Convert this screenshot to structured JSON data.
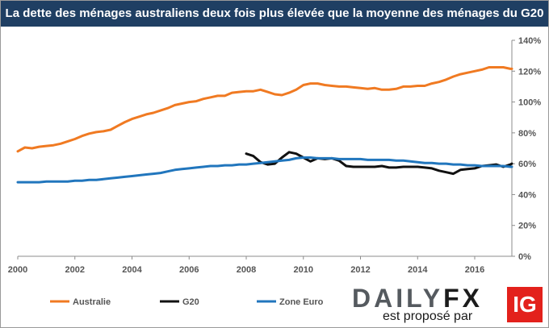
{
  "chart_data": {
    "type": "line",
    "title": "La dette des ménages australiens deux fois plus élevée que la moyenne des ménages du G20",
    "x_ticks": [
      "2000",
      "2002",
      "2004",
      "2006",
      "2008",
      "2010",
      "2012",
      "2014",
      "2016"
    ],
    "y_ticks": [
      "0%",
      "20%",
      "40%",
      "60%",
      "80%",
      "100%",
      "120%",
      "140%"
    ],
    "xlim": [
      2000,
      2017.3
    ],
    "ylim": [
      0,
      140
    ],
    "y_axis_side": "right",
    "grid": "none",
    "legend_position": "bottom-left",
    "series": [
      {
        "name": "Australie",
        "color": "#f07a22",
        "points": [
          [
            2000.0,
            68
          ],
          [
            2000.25,
            70.5
          ],
          [
            2000.5,
            70
          ],
          [
            2000.75,
            71
          ],
          [
            2001.0,
            71.5
          ],
          [
            2001.25,
            72
          ],
          [
            2001.5,
            73
          ],
          [
            2001.75,
            74.5
          ],
          [
            2002.0,
            76
          ],
          [
            2002.25,
            78
          ],
          [
            2002.5,
            79.5
          ],
          [
            2002.75,
            80.5
          ],
          [
            2003.0,
            81
          ],
          [
            2003.25,
            82
          ],
          [
            2003.5,
            84.5
          ],
          [
            2003.75,
            87
          ],
          [
            2004.0,
            89
          ],
          [
            2004.25,
            90.5
          ],
          [
            2004.5,
            92
          ],
          [
            2004.75,
            93
          ],
          [
            2005.0,
            94.5
          ],
          [
            2005.25,
            96
          ],
          [
            2005.5,
            98
          ],
          [
            2005.75,
            99
          ],
          [
            2006.0,
            100
          ],
          [
            2006.25,
            100.5
          ],
          [
            2006.5,
            102
          ],
          [
            2006.75,
            103
          ],
          [
            2007.0,
            104
          ],
          [
            2007.25,
            104
          ],
          [
            2007.5,
            106
          ],
          [
            2007.75,
            106.5
          ],
          [
            2008.0,
            107
          ],
          [
            2008.25,
            107
          ],
          [
            2008.5,
            108
          ],
          [
            2008.75,
            106.5
          ],
          [
            2009.0,
            105
          ],
          [
            2009.25,
            104.5
          ],
          [
            2009.5,
            106
          ],
          [
            2009.75,
            108
          ],
          [
            2010.0,
            111
          ],
          [
            2010.25,
            112
          ],
          [
            2010.5,
            112
          ],
          [
            2010.75,
            111
          ],
          [
            2011.0,
            110.5
          ],
          [
            2011.25,
            110
          ],
          [
            2011.5,
            110
          ],
          [
            2011.75,
            109.5
          ],
          [
            2012.0,
            109
          ],
          [
            2012.25,
            108.5
          ],
          [
            2012.5,
            109
          ],
          [
            2012.75,
            108
          ],
          [
            2013.0,
            108
          ],
          [
            2013.25,
            108.5
          ],
          [
            2013.5,
            110
          ],
          [
            2013.75,
            110
          ],
          [
            2014.0,
            110.5
          ],
          [
            2014.25,
            110.5
          ],
          [
            2014.5,
            112
          ],
          [
            2014.75,
            113
          ],
          [
            2015.0,
            114.5
          ],
          [
            2015.25,
            116.5
          ],
          [
            2015.5,
            118
          ],
          [
            2015.75,
            119
          ],
          [
            2016.0,
            120
          ],
          [
            2016.25,
            121
          ],
          [
            2016.5,
            122.5
          ],
          [
            2016.75,
            122.5
          ],
          [
            2017.0,
            122.5
          ],
          [
            2017.25,
            121.5
          ],
          [
            2017.3,
            121.5
          ]
        ]
      },
      {
        "name": "G20",
        "color": "#111111",
        "points": [
          [
            2008.0,
            66.5
          ],
          [
            2008.25,
            65
          ],
          [
            2008.5,
            61
          ],
          [
            2008.75,
            59.5
          ],
          [
            2009.0,
            60
          ],
          [
            2009.25,
            64
          ],
          [
            2009.5,
            67.5
          ],
          [
            2009.75,
            66.5
          ],
          [
            2010.0,
            64
          ],
          [
            2010.25,
            61.5
          ],
          [
            2010.5,
            63.5
          ],
          [
            2010.75,
            63
          ],
          [
            2011.0,
            63.5
          ],
          [
            2011.25,
            62
          ],
          [
            2011.5,
            58.5
          ],
          [
            2011.75,
            58
          ],
          [
            2012.0,
            58
          ],
          [
            2012.25,
            58
          ],
          [
            2012.5,
            58
          ],
          [
            2012.75,
            58.5
          ],
          [
            2013.0,
            57.5
          ],
          [
            2013.25,
            57.5
          ],
          [
            2013.5,
            58
          ],
          [
            2013.75,
            58
          ],
          [
            2014.0,
            58
          ],
          [
            2014.25,
            57.5
          ],
          [
            2014.5,
            57
          ],
          [
            2014.75,
            55.5
          ],
          [
            2015.0,
            54.5
          ],
          [
            2015.25,
            53.5
          ],
          [
            2015.5,
            56
          ],
          [
            2015.75,
            56.5
          ],
          [
            2016.0,
            57
          ],
          [
            2016.25,
            58.5
          ],
          [
            2016.5,
            59
          ],
          [
            2016.75,
            59.5
          ],
          [
            2017.0,
            58
          ],
          [
            2017.25,
            59.5
          ],
          [
            2017.3,
            60
          ]
        ]
      },
      {
        "name": "Zone Euro",
        "color": "#2176bd",
        "points": [
          [
            2000.0,
            48
          ],
          [
            2000.25,
            48
          ],
          [
            2000.5,
            48
          ],
          [
            2000.75,
            48
          ],
          [
            2001.0,
            48.5
          ],
          [
            2001.25,
            48.5
          ],
          [
            2001.5,
            48.5
          ],
          [
            2001.75,
            48.5
          ],
          [
            2002.0,
            49
          ],
          [
            2002.25,
            49
          ],
          [
            2002.5,
            49.5
          ],
          [
            2002.75,
            49.5
          ],
          [
            2003.0,
            50
          ],
          [
            2003.25,
            50.5
          ],
          [
            2003.5,
            51
          ],
          [
            2003.75,
            51.5
          ],
          [
            2004.0,
            52
          ],
          [
            2004.25,
            52.5
          ],
          [
            2004.5,
            53
          ],
          [
            2004.75,
            53.5
          ],
          [
            2005.0,
            54
          ],
          [
            2005.25,
            55
          ],
          [
            2005.5,
            56
          ],
          [
            2005.75,
            56.5
          ],
          [
            2006.0,
            57
          ],
          [
            2006.25,
            57.5
          ],
          [
            2006.5,
            58
          ],
          [
            2006.75,
            58.5
          ],
          [
            2007.0,
            58.5
          ],
          [
            2007.25,
            59
          ],
          [
            2007.5,
            59
          ],
          [
            2007.75,
            59.5
          ],
          [
            2008.0,
            59.5
          ],
          [
            2008.25,
            60
          ],
          [
            2008.5,
            60.5
          ],
          [
            2008.75,
            61
          ],
          [
            2009.0,
            61.5
          ],
          [
            2009.25,
            62
          ],
          [
            2009.5,
            62.5
          ],
          [
            2009.75,
            63.5
          ],
          [
            2010.0,
            64
          ],
          [
            2010.25,
            64
          ],
          [
            2010.5,
            63.5
          ],
          [
            2010.75,
            63.5
          ],
          [
            2011.0,
            63.5
          ],
          [
            2011.25,
            63
          ],
          [
            2011.5,
            63
          ],
          [
            2011.75,
            63
          ],
          [
            2012.0,
            63
          ],
          [
            2012.25,
            62.5
          ],
          [
            2012.5,
            62.5
          ],
          [
            2012.75,
            62.5
          ],
          [
            2013.0,
            62.5
          ],
          [
            2013.25,
            62
          ],
          [
            2013.5,
            62
          ],
          [
            2013.75,
            61.5
          ],
          [
            2014.0,
            61
          ],
          [
            2014.25,
            60.5
          ],
          [
            2014.5,
            60.5
          ],
          [
            2014.75,
            60
          ],
          [
            2015.0,
            60
          ],
          [
            2015.25,
            59.5
          ],
          [
            2015.5,
            59.5
          ],
          [
            2015.75,
            59
          ],
          [
            2016.0,
            59
          ],
          [
            2016.25,
            58.5
          ],
          [
            2016.5,
            58.5
          ],
          [
            2016.75,
            58.5
          ],
          [
            2017.0,
            58.5
          ],
          [
            2017.25,
            58
          ],
          [
            2017.3,
            58
          ]
        ]
      }
    ]
  },
  "branding": {
    "daily": "DAILY",
    "fx": "FX",
    "tagline": "est proposé par",
    "ig": "IG"
  }
}
